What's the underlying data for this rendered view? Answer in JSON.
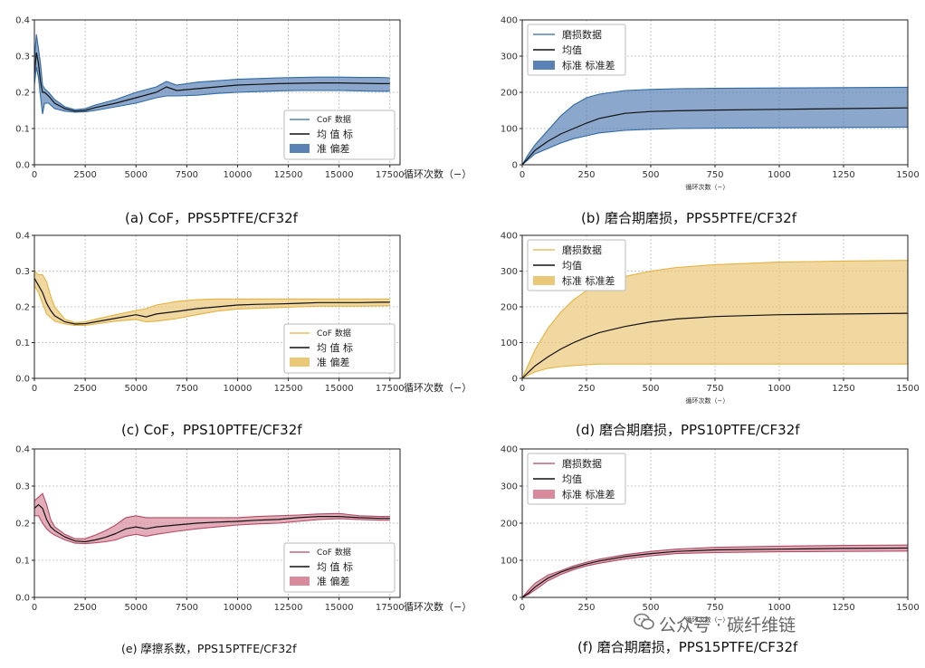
{
  "captions": {
    "a": "(a) CoF，PPS5PTFE/CF32f",
    "b": "(b) 磨合期磨损，PPS5PTFE/CF32f",
    "c": "(c) CoF，PPS10PTFE/CF32f",
    "d": "(d) 磨合期磨损，PPS10PTFE/CF32f",
    "e": "(e) 摩擦系数，PPS15PTFE/CF32f",
    "f": "(f) 磨合期磨损，PPS15PTFE/CF32f"
  },
  "watermark": "公众号 · 碳纤维链",
  "colors": {
    "blue": "#2f6aa3",
    "blue_fill": "#5a82b5",
    "gold": "#e3b341",
    "gold_fill": "#ebc878",
    "red": "#b24a63",
    "red_fill": "#d98a9c",
    "mean": "#111111"
  },
  "chart_data": [
    {
      "id": "a",
      "type": "line",
      "color_key": "blue",
      "xlabel": "循环次数（−）",
      "ylabel": "",
      "xlim": [
        0,
        18000
      ],
      "ylim": [
        0,
        0.4
      ],
      "xticks": [
        0,
        2500,
        5000,
        7500,
        10000,
        12500,
        15000,
        17500
      ],
      "yticks": [
        0.0,
        0.1,
        0.2,
        0.3,
        0.4
      ],
      "legend": {
        "position": "lower-right",
        "entries": [
          "CoF 数据",
          "均 值 标",
          "准       偏差"
        ]
      },
      "x": [
        0,
        100,
        200,
        300,
        400,
        500,
        700,
        1000,
        1500,
        2000,
        2500,
        3000,
        4000,
        5000,
        6000,
        6500,
        7000,
        8000,
        9000,
        10000,
        11000,
        12000,
        13000,
        14000,
        15000,
        16000,
        17000,
        17500
      ],
      "series": [
        {
          "role": "mean",
          "values": [
            0.25,
            0.31,
            0.28,
            0.23,
            0.2,
            0.2,
            0.19,
            0.17,
            0.155,
            0.148,
            0.15,
            0.158,
            0.17,
            0.185,
            0.2,
            0.215,
            0.205,
            0.21,
            0.215,
            0.22,
            0.222,
            0.224,
            0.225,
            0.226,
            0.226,
            0.225,
            0.224,
            0.224
          ]
        },
        {
          "role": "upper",
          "values": [
            0.29,
            0.36,
            0.32,
            0.28,
            0.22,
            0.21,
            0.2,
            0.18,
            0.16,
            0.152,
            0.155,
            0.165,
            0.18,
            0.2,
            0.215,
            0.23,
            0.22,
            0.228,
            0.232,
            0.236,
            0.238,
            0.24,
            0.241,
            0.242,
            0.242,
            0.241,
            0.241,
            0.24
          ]
        },
        {
          "role": "lower",
          "values": [
            0.22,
            0.27,
            0.24,
            0.19,
            0.14,
            0.17,
            0.17,
            0.155,
            0.148,
            0.145,
            0.146,
            0.15,
            0.16,
            0.17,
            0.185,
            0.19,
            0.19,
            0.192,
            0.197,
            0.2,
            0.202,
            0.204,
            0.205,
            0.205,
            0.205,
            0.204,
            0.203,
            0.203
          ]
        }
      ]
    },
    {
      "id": "b",
      "type": "line",
      "color_key": "blue",
      "xlabel": "循环次数（−）",
      "ylabel": "",
      "xlim": [
        0,
        1500
      ],
      "ylim": [
        0,
        400
      ],
      "xticks": [
        0,
        250,
        500,
        750,
        1000,
        1250,
        1500
      ],
      "yticks": [
        0,
        100,
        200,
        300,
        400
      ],
      "legend": {
        "position": "upper-left",
        "entries": [
          "磨损数据",
          "均值",
          "标准 标准差"
        ]
      },
      "x": [
        0,
        25,
        50,
        100,
        150,
        200,
        250,
        300,
        400,
        500,
        600,
        750,
        1000,
        1250,
        1500
      ],
      "series": [
        {
          "role": "mean",
          "values": [
            0,
            20,
            40,
            65,
            85,
            100,
            115,
            128,
            142,
            147,
            149,
            151,
            153,
            155,
            157
          ]
        },
        {
          "role": "upper",
          "values": [
            0,
            30,
            55,
            95,
            135,
            165,
            185,
            195,
            205,
            208,
            210,
            211,
            212,
            213,
            214
          ]
        },
        {
          "role": "lower",
          "values": [
            0,
            15,
            30,
            45,
            60,
            72,
            80,
            88,
            95,
            98,
            100,
            101,
            102,
            103,
            104
          ]
        }
      ]
    },
    {
      "id": "c",
      "type": "line",
      "color_key": "gold",
      "xlabel": "循环次数（−）",
      "ylabel": "",
      "xlim": [
        0,
        18000
      ],
      "ylim": [
        0,
        0.4
      ],
      "xticks": [
        0,
        2500,
        5000,
        7500,
        10000,
        12500,
        15000,
        17500
      ],
      "yticks": [
        0.0,
        0.1,
        0.2,
        0.3,
        0.4
      ],
      "legend": {
        "position": "lower-right",
        "entries": [
          "CoF 数据",
          "均 值 标",
          "准       偏差"
        ]
      },
      "x": [
        0,
        200,
        400,
        600,
        800,
        1000,
        1500,
        2000,
        2500,
        3000,
        4000,
        5000,
        5500,
        6000,
        7000,
        8000,
        9000,
        10000,
        11000,
        12000,
        13000,
        14000,
        15000,
        16000,
        17000,
        17500
      ],
      "series": [
        {
          "role": "mean",
          "values": [
            0.28,
            0.26,
            0.24,
            0.21,
            0.19,
            0.175,
            0.158,
            0.152,
            0.153,
            0.158,
            0.168,
            0.178,
            0.172,
            0.18,
            0.187,
            0.195,
            0.2,
            0.205,
            0.207,
            0.208,
            0.21,
            0.212,
            0.212,
            0.212,
            0.213,
            0.213
          ]
        },
        {
          "role": "upper",
          "values": [
            0.3,
            0.29,
            0.29,
            0.27,
            0.23,
            0.2,
            0.165,
            0.156,
            0.158,
            0.165,
            0.178,
            0.19,
            0.195,
            0.205,
            0.215,
            0.22,
            0.222,
            0.222,
            0.222,
            0.222,
            0.222,
            0.222,
            0.222,
            0.222,
            0.222,
            0.222
          ]
        },
        {
          "role": "lower",
          "values": [
            0.26,
            0.24,
            0.21,
            0.18,
            0.17,
            0.16,
            0.152,
            0.148,
            0.148,
            0.152,
            0.16,
            0.165,
            0.158,
            0.16,
            0.167,
            0.178,
            0.188,
            0.194,
            0.196,
            0.198,
            0.2,
            0.202,
            0.202,
            0.202,
            0.203,
            0.203
          ]
        }
      ]
    },
    {
      "id": "d",
      "type": "line",
      "color_key": "gold",
      "xlabel": "循环次数（−）",
      "ylabel": "",
      "xlim": [
        0,
        1500
      ],
      "ylim": [
        0,
        400
      ],
      "xticks": [
        0,
        250,
        500,
        750,
        1000,
        1250,
        1500
      ],
      "yticks": [
        0,
        100,
        200,
        300,
        400
      ],
      "legend": {
        "position": "upper-left",
        "entries": [
          "磨损数据",
          "均值",
          "标准 标准差"
        ]
      },
      "x": [
        0,
        25,
        50,
        100,
        150,
        200,
        250,
        300,
        400,
        500,
        600,
        750,
        1000,
        1250,
        1500
      ],
      "series": [
        {
          "role": "mean",
          "values": [
            0,
            18,
            35,
            60,
            82,
            100,
            115,
            128,
            145,
            158,
            166,
            173,
            178,
            180,
            182
          ]
        },
        {
          "role": "upper",
          "values": [
            0,
            40,
            80,
            140,
            185,
            220,
            245,
            262,
            285,
            300,
            310,
            318,
            325,
            328,
            330
          ]
        },
        {
          "role": "lower",
          "values": [
            0,
            10,
            18,
            28,
            33,
            36,
            38,
            40,
            40,
            40,
            40,
            40,
            40,
            40,
            40
          ]
        }
      ]
    },
    {
      "id": "e",
      "type": "line",
      "color_key": "red",
      "xlabel": "循环次数（−）",
      "ylabel": "",
      "xlim": [
        0,
        18000
      ],
      "ylim": [
        0,
        0.4
      ],
      "xticks": [
        0,
        2500,
        5000,
        7500,
        10000,
        12500,
        15000,
        17500
      ],
      "yticks": [
        0.0,
        0.1,
        0.2,
        0.3,
        0.4
      ],
      "legend": {
        "position": "lower-right",
        "entries": [
          "CoF 数据",
          "均 值 标",
          "准       偏差"
        ]
      },
      "x": [
        0,
        200,
        400,
        600,
        800,
        1000,
        1500,
        2000,
        2500,
        3000,
        3500,
        4000,
        4500,
        5000,
        5500,
        6000,
        7000,
        8000,
        9000,
        10000,
        11000,
        12000,
        13000,
        14000,
        15000,
        16000,
        17000,
        17500
      ],
      "series": [
        {
          "role": "mean",
          "values": [
            0.24,
            0.25,
            0.24,
            0.21,
            0.19,
            0.18,
            0.163,
            0.152,
            0.15,
            0.155,
            0.162,
            0.172,
            0.185,
            0.19,
            0.185,
            0.19,
            0.195,
            0.2,
            0.203,
            0.205,
            0.208,
            0.21,
            0.215,
            0.218,
            0.218,
            0.215,
            0.213,
            0.213
          ]
        },
        {
          "role": "upper",
          "values": [
            0.26,
            0.27,
            0.28,
            0.25,
            0.21,
            0.19,
            0.17,
            0.158,
            0.158,
            0.168,
            0.18,
            0.195,
            0.215,
            0.22,
            0.215,
            0.215,
            0.215,
            0.215,
            0.215,
            0.215,
            0.218,
            0.22,
            0.222,
            0.225,
            0.226,
            0.22,
            0.218,
            0.218
          ]
        },
        {
          "role": "lower",
          "values": [
            0.22,
            0.22,
            0.2,
            0.185,
            0.175,
            0.168,
            0.155,
            0.146,
            0.145,
            0.147,
            0.15,
            0.155,
            0.165,
            0.17,
            0.165,
            0.17,
            0.178,
            0.185,
            0.19,
            0.195,
            0.198,
            0.2,
            0.205,
            0.21,
            0.212,
            0.21,
            0.208,
            0.208
          ]
        }
      ]
    },
    {
      "id": "f",
      "type": "line",
      "color_key": "red",
      "xlabel": "循环次数（−）",
      "ylabel": "",
      "xlim": [
        0,
        1500
      ],
      "ylim": [
        0,
        400
      ],
      "xticks": [
        0,
        250,
        500,
        750,
        1000,
        1250,
        1500
      ],
      "yticks": [
        0,
        100,
        200,
        300,
        400
      ],
      "legend": {
        "position": "upper-left",
        "entries": [
          "磨损数据",
          "均值",
          "标准 标准差"
        ]
      },
      "x": [
        0,
        25,
        50,
        100,
        150,
        200,
        250,
        300,
        400,
        500,
        600,
        750,
        1000,
        1250,
        1500
      ],
      "series": [
        {
          "role": "mean",
          "values": [
            0,
            12,
            28,
            52,
            68,
            80,
            90,
            98,
            110,
            118,
            124,
            128,
            130,
            132,
            133
          ]
        },
        {
          "role": "upper",
          "values": [
            0,
            20,
            38,
            60,
            72,
            85,
            95,
            103,
            115,
            124,
            130,
            135,
            138,
            140,
            141
          ]
        },
        {
          "role": "lower",
          "values": [
            0,
            8,
            20,
            45,
            62,
            75,
            85,
            92,
            104,
            112,
            118,
            121,
            123,
            124,
            125
          ]
        }
      ]
    }
  ]
}
